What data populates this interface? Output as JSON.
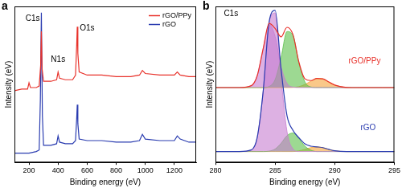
{
  "chart_data": [
    {
      "type": "line",
      "title": "a",
      "x_label": "Binding energy (eV)",
      "y_label": "Intensity (eV)",
      "xlim": [
        100,
        1350
      ],
      "xticks": [
        200,
        400,
        600,
        800,
        1000,
        1200
      ],
      "ylim": [
        0,
        100
      ],
      "tick_labels": "x",
      "grid": false,
      "legend": "upper right",
      "series": [
        {
          "name": "rGO/PPy",
          "color": "#e8322b",
          "x": [
            100,
            150,
            190,
            200,
            210,
            250,
            270,
            280,
            285,
            290,
            300,
            350,
            390,
            400,
            410,
            450,
            500,
            520,
            528,
            532,
            536,
            545,
            600,
            700,
            800,
            900,
            960,
            980,
            1000,
            1100,
            1200,
            1220,
            1240,
            1300,
            1350
          ],
          "values": [
            46,
            47,
            47,
            51,
            48,
            48,
            49,
            62,
            84,
            60,
            52,
            52,
            53,
            58,
            54,
            53,
            53,
            56,
            75,
            87,
            70,
            58,
            56,
            56,
            55,
            55,
            56,
            59,
            57,
            56,
            56,
            58,
            56,
            55,
            55
          ]
        },
        {
          "name": "rGO",
          "color": "#2a3cb0",
          "x": [
            100,
            150,
            200,
            250,
            270,
            278,
            285,
            292,
            300,
            350,
            390,
            400,
            410,
            450,
            500,
            520,
            528,
            532,
            536,
            545,
            600,
            700,
            800,
            900,
            960,
            980,
            1000,
            1100,
            1200,
            1220,
            1240,
            1300,
            1350
          ],
          "values": [
            6,
            6,
            6,
            7,
            8,
            40,
            96,
            30,
            11,
            11,
            12,
            17,
            13,
            12,
            12,
            14,
            28,
            37,
            25,
            15,
            14,
            14,
            13,
            13,
            14,
            18,
            15,
            14,
            14,
            17,
            15,
            13,
            13
          ]
        }
      ],
      "annotations": [
        {
          "text": "C1s",
          "x": 225,
          "y": 92
        },
        {
          "text": "N1s",
          "x": 400,
          "y": 66
        },
        {
          "text": "O1s",
          "x": 600,
          "y": 86
        }
      ]
    },
    {
      "type": "line",
      "title": "b",
      "x_label": "Binding energy (eV)",
      "y_label": "Intensity (eV)",
      "xlim": [
        280,
        295
      ],
      "xticks": [
        280,
        285,
        290,
        295
      ],
      "ylim": [
        0,
        100
      ],
      "tick_labels": "x",
      "grid": false,
      "x": [
        280,
        281,
        282,
        283,
        283.5,
        284,
        284.5,
        285,
        285.5,
        286,
        286.5,
        287,
        287.5,
        288,
        288.5,
        289,
        289.5,
        290,
        291,
        292,
        293,
        294,
        295
      ],
      "series": [
        {
          "color": "#c77dd0",
          "baseline": 48,
          "values": [
            48,
            48,
            48,
            49.2,
            55.6,
            72.9,
            88.4,
            80.8,
            61.3,
            50.7,
            48.3,
            48,
            48,
            48,
            48,
            48,
            48,
            48,
            48,
            48,
            48,
            48,
            48
          ]
        },
        {
          "color": "#5cbf4a",
          "baseline": 48,
          "values": [
            48,
            48,
            48,
            48,
            48,
            48,
            48.7,
            53.1,
            67.2,
            83.9,
            81.5,
            63.6,
            51.6,
            48.4,
            48,
            48,
            48,
            48,
            48,
            48,
            48,
            48,
            48
          ]
        },
        {
          "color": "#f5a33a",
          "baseline": 48,
          "values": [
            48,
            48,
            48,
            48,
            48,
            48,
            48,
            48,
            48,
            48,
            48.1,
            48.6,
            50,
            52.1,
            53.8,
            53.6,
            51.6,
            49.6,
            48.1,
            48,
            48,
            48,
            48
          ]
        },
        {
          "color": "#e8322b",
          "values": [
            48,
            48,
            48,
            49.2,
            55.6,
            72.9,
            89.1,
            85.9,
            80.5,
            86.6,
            81.9,
            64.2,
            53.6,
            52.5,
            53.8,
            53.6,
            51.6,
            49.6,
            48.1,
            48,
            48,
            48,
            48
          ]
        },
        {
          "color": "#c77dd0",
          "baseline": 7,
          "values": [
            7,
            7,
            7,
            8,
            16,
            45.6,
            89.9,
            95.9,
            54.6,
            19.7,
            8.7,
            7,
            7,
            7,
            7,
            7,
            7,
            7,
            7,
            7,
            7,
            7,
            7
          ]
        },
        {
          "color": "#5cbf4a",
          "baseline": 7,
          "values": [
            7,
            7,
            7,
            7,
            7,
            7,
            7.3,
            8.6,
            12.3,
            17.2,
            18.9,
            15.3,
            10.5,
            7.9,
            7,
            7,
            7,
            7,
            7,
            7,
            7,
            7,
            7
          ]
        },
        {
          "color": "#f5a33a",
          "baseline": 7,
          "values": [
            7,
            7,
            7,
            7,
            7,
            7,
            7,
            7,
            7,
            7,
            7,
            7.5,
            8.4,
            9.5,
            10,
            9.5,
            8.4,
            7.5,
            7,
            7,
            7,
            7,
            7
          ]
        },
        {
          "color": "#2a3cb0",
          "values": [
            7,
            7,
            7,
            8,
            16,
            45.6,
            90.2,
            97.5,
            59.9,
            29.9,
            20.6,
            15.8,
            11.9,
            10.4,
            10,
            9.5,
            8.4,
            7.5,
            7,
            7,
            7,
            7,
            7
          ]
        }
      ],
      "annotations": [
        {
          "text": "C1s",
          "x": 281.3,
          "y": 95
        },
        {
          "text": "rGO/PPy",
          "x": 292.5,
          "y": 65,
          "color": "#e8322b"
        },
        {
          "text": "rGO",
          "x": 292.8,
          "y": 22,
          "color": "#2a3cb0"
        }
      ]
    }
  ]
}
